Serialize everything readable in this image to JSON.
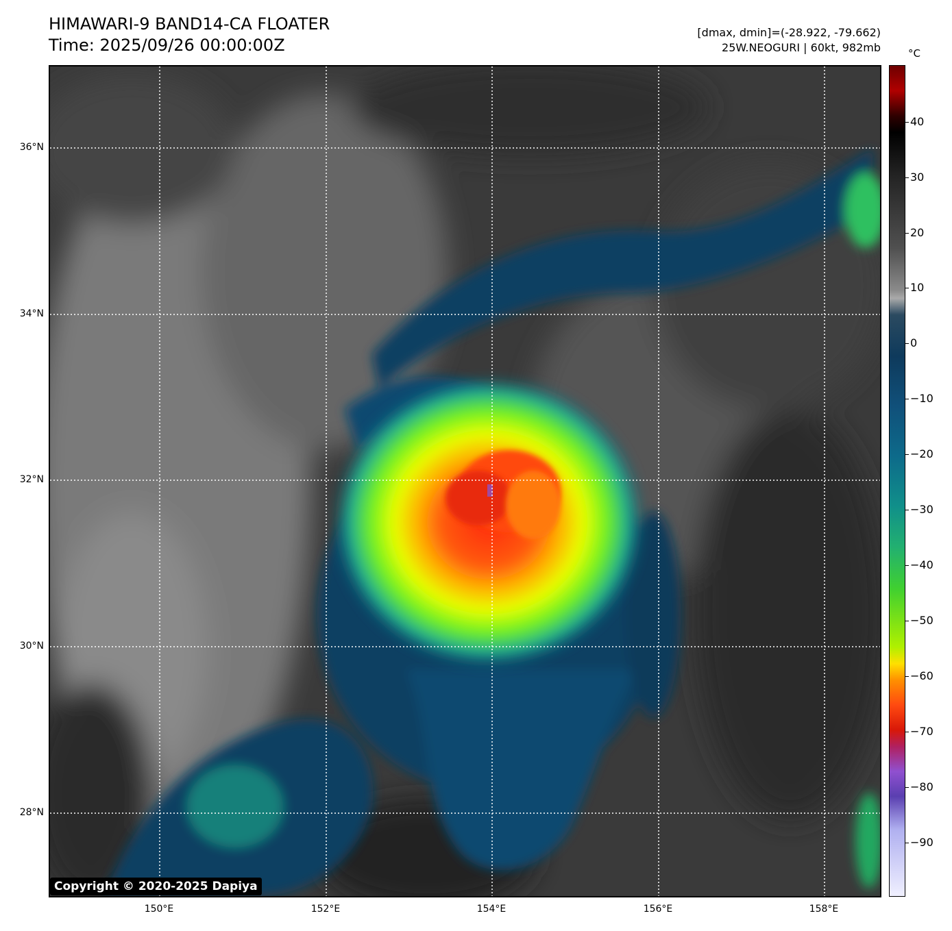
{
  "title": "HIMAWARI-9 BAND14-CA FLOATER",
  "time": "Time: 2025/09/26 00:00:00Z",
  "stats_line1": "[dmax, dmin]=(-28.922, -79.662)",
  "stats_line2": "25W.NEOGURI | 60kt, 982mb",
  "copyright": "Copyright © 2020-2025 Dapiya",
  "colorbar": {
    "unit": "°C",
    "ticks": [
      "40",
      "30",
      "20",
      "10",
      "0",
      "−10",
      "−20",
      "−30",
      "−40",
      "−50",
      "−60",
      "−70",
      "−80",
      "−90"
    ]
  },
  "map": {
    "lat_labels": [
      "36°N",
      "34°N",
      "32°N",
      "30°N",
      "28°N"
    ],
    "lon_labels": [
      "150°E",
      "152°E",
      "154°E",
      "156°E",
      "158°E"
    ],
    "storm_center_lon_lat": [
      154.0,
      31.8
    ]
  }
}
